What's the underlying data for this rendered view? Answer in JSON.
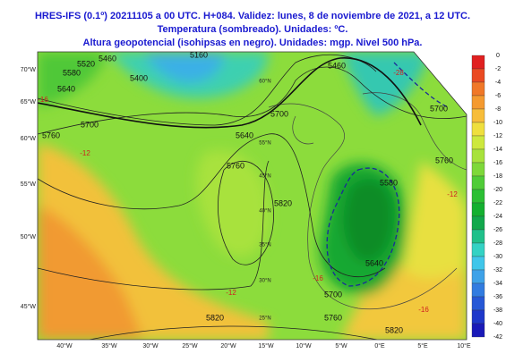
{
  "header": {
    "lines": [
      "HRES-IFS (0.1º) 20211105 a 00 UTC. H+084. Validez: lunes, 8 de noviembre de 2021, a 12 UTC.",
      "Temperatura (sombreado). Unidades: ºC.",
      "Altura geopotencial (isohipsas en negro). Unidades: mgp. Nivel 500 hPa."
    ]
  },
  "map": {
    "lon_labels": [
      "40°W",
      "35°W",
      "30°W",
      "25°W",
      "20°W",
      "15°W",
      "10°W",
      "5°W",
      "0°E",
      "5°E",
      "10°E"
    ],
    "lat_labels": [
      "70°W",
      "65°W",
      "60°W",
      "55°W",
      "50°W",
      "45°W"
    ],
    "inner_lat_labels": [
      "60°N",
      "55°N",
      "45°N",
      "40°N",
      "35°N",
      "30°N",
      "25°N"
    ],
    "contour_labels": [
      "5760",
      "5700",
      "5640",
      "5580",
      "5520",
      "5460",
      "5400",
      "5160",
      "5700",
      "5640",
      "5760",
      "5820",
      "5820",
      "5760",
      "5700",
      "5640",
      "5580",
      "5460",
      "5700",
      "5760",
      "5820"
    ],
    "temperature_labels": [
      "-16",
      "-12",
      "-12",
      "-16",
      "-12",
      "-28",
      "-16"
    ]
  },
  "colorbar": {
    "ticks": [
      0,
      -2,
      -4,
      -6,
      -8,
      -10,
      -12,
      -14,
      -16,
      -18,
      -20,
      -22,
      -24,
      -26,
      -28,
      -30,
      -32,
      -34,
      -36,
      -38,
      -40,
      -42
    ],
    "colors": [
      "#e02020",
      "#ea4a22",
      "#f07828",
      "#f49a30",
      "#f7bd3a",
      "#efdf3e",
      "#cde83e",
      "#a8e23c",
      "#7ed83a",
      "#50cc38",
      "#2cbf34",
      "#14b030",
      "#12a84c",
      "#20c08a",
      "#34d2c4",
      "#40c6ea",
      "#3ea2e8",
      "#327ce0",
      "#2658d6",
      "#1e38ca",
      "#1a1ab8"
    ]
  }
}
